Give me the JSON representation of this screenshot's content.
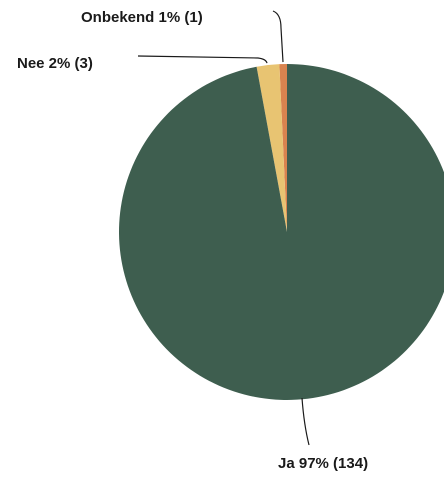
{
  "chart_data": {
    "type": "pie",
    "slices": [
      {
        "label": "Ja",
        "percent": "97%",
        "value": 134,
        "color": "#3e5e4f",
        "text": "Ja 97% (134)"
      },
      {
        "label": "Nee",
        "percent": "2%",
        "value": 3,
        "color": "#e8c472",
        "text": "Nee 2% (3)"
      },
      {
        "label": "Onbekend",
        "percent": "1%",
        "value": 1,
        "color": "#d9834f",
        "text": "Onbekend 1% (1)"
      }
    ]
  }
}
